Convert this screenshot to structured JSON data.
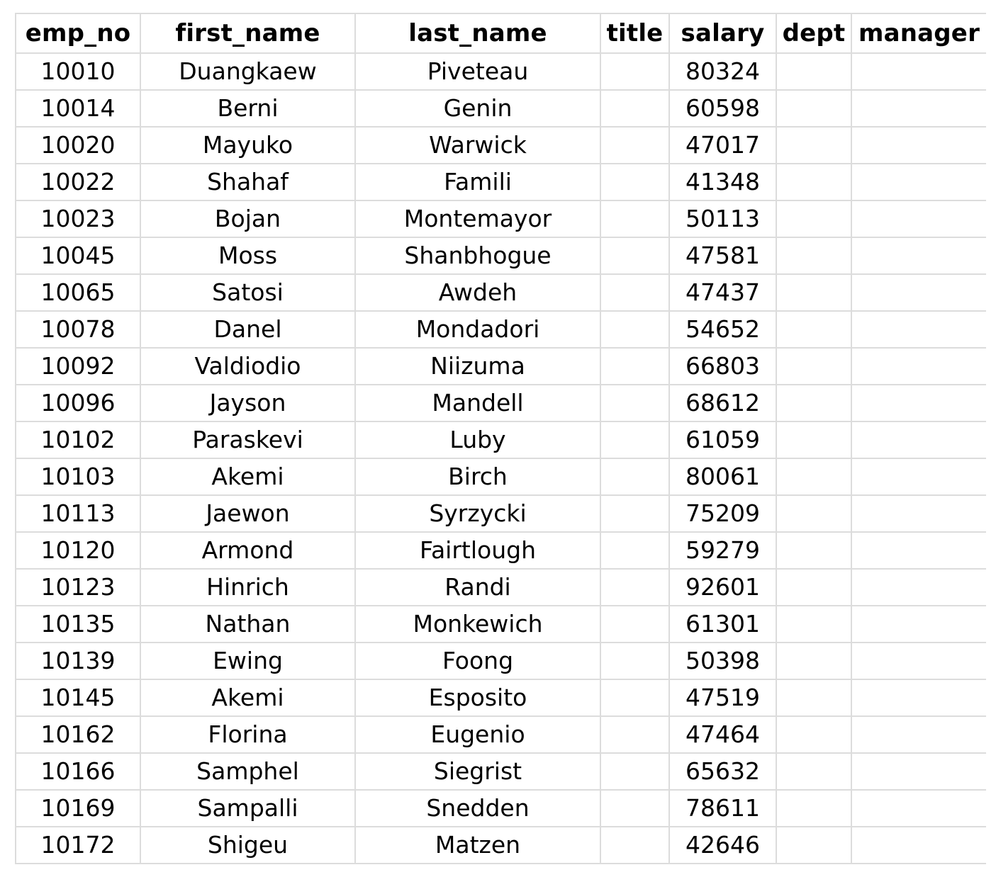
{
  "table": {
    "columns": [
      "emp_no",
      "first_name",
      "last_name",
      "title",
      "salary",
      "dept",
      "manager"
    ],
    "rows": [
      [
        "10010",
        "Duangkaew",
        "Piveteau",
        "",
        "80324",
        "",
        ""
      ],
      [
        "10014",
        "Berni",
        "Genin",
        "",
        "60598",
        "",
        ""
      ],
      [
        "10020",
        "Mayuko",
        "Warwick",
        "",
        "47017",
        "",
        ""
      ],
      [
        "10022",
        "Shahaf",
        "Famili",
        "",
        "41348",
        "",
        ""
      ],
      [
        "10023",
        "Bojan",
        "Montemayor",
        "",
        "50113",
        "",
        ""
      ],
      [
        "10045",
        "Moss",
        "Shanbhogue",
        "",
        "47581",
        "",
        ""
      ],
      [
        "10065",
        "Satosi",
        "Awdeh",
        "",
        "47437",
        "",
        ""
      ],
      [
        "10078",
        "Danel",
        "Mondadori",
        "",
        "54652",
        "",
        ""
      ],
      [
        "10092",
        "Valdiodio",
        "Niizuma",
        "",
        "66803",
        "",
        ""
      ],
      [
        "10096",
        "Jayson",
        "Mandell",
        "",
        "68612",
        "",
        ""
      ],
      [
        "10102",
        "Paraskevi",
        "Luby",
        "",
        "61059",
        "",
        ""
      ],
      [
        "10103",
        "Akemi",
        "Birch",
        "",
        "80061",
        "",
        ""
      ],
      [
        "10113",
        "Jaewon",
        "Syrzycki",
        "",
        "75209",
        "",
        ""
      ],
      [
        "10120",
        "Armond",
        "Fairtlough",
        "",
        "59279",
        "",
        ""
      ],
      [
        "10123",
        "Hinrich",
        "Randi",
        "",
        "92601",
        "",
        ""
      ],
      [
        "10135",
        "Nathan",
        "Monkewich",
        "",
        "61301",
        "",
        ""
      ],
      [
        "10139",
        "Ewing",
        "Foong",
        "",
        "50398",
        "",
        ""
      ],
      [
        "10145",
        "Akemi",
        "Esposito",
        "",
        "47519",
        "",
        ""
      ],
      [
        "10162",
        "Florina",
        "Eugenio",
        "",
        "47464",
        "",
        ""
      ],
      [
        "10166",
        "Samphel",
        "Siegrist",
        "",
        "65632",
        "",
        ""
      ],
      [
        "10169",
        "Sampalli",
        "Snedden",
        "",
        "78611",
        "",
        ""
      ],
      [
        "10172",
        "Shigeu",
        "Matzen",
        "",
        "42646",
        "",
        ""
      ]
    ]
  }
}
